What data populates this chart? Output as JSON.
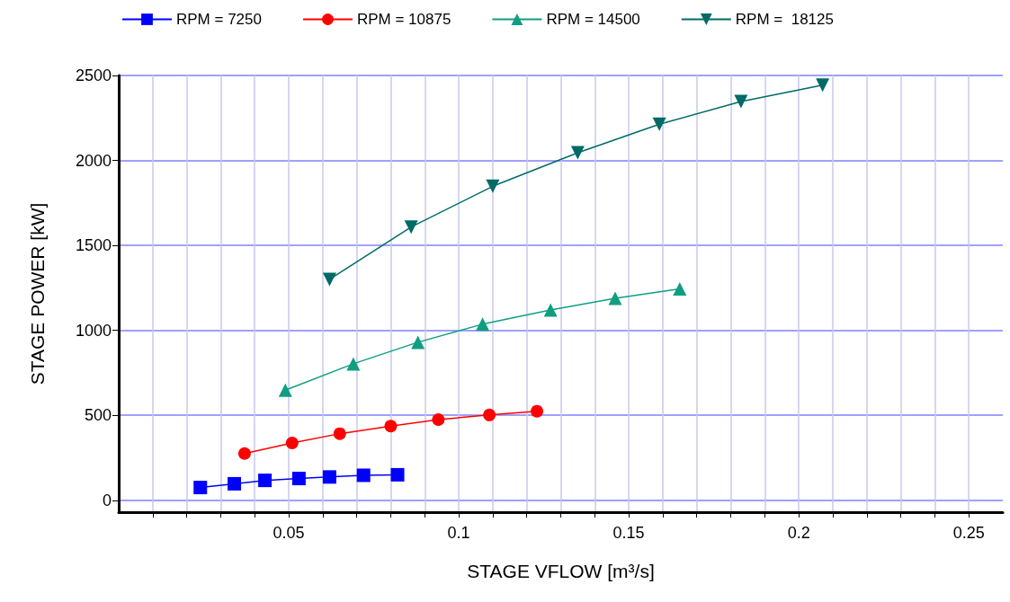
{
  "chart_data": {
    "type": "line",
    "xlabel": "STAGE VFLOW [m³/s]",
    "ylabel": "STAGE POWER [kW]",
    "xlim": [
      0,
      0.26
    ],
    "ylim": [
      -70,
      2500
    ],
    "xticks": [
      {
        "value": 0.01,
        "label": null
      },
      {
        "value": 0.02,
        "label": null
      },
      {
        "value": 0.03,
        "label": null
      },
      {
        "value": 0.04,
        "label": null
      },
      0.05,
      {
        "value": 0.06,
        "label": null
      },
      {
        "value": 0.07,
        "label": null
      },
      {
        "value": 0.08,
        "label": null
      },
      {
        "value": 0.09,
        "label": null
      },
      0.1,
      {
        "value": 0.11,
        "label": null
      },
      {
        "value": 0.12,
        "label": null
      },
      {
        "value": 0.13,
        "label": null
      },
      {
        "value": 0.14,
        "label": null
      },
      0.15,
      {
        "value": 0.16,
        "label": null
      },
      {
        "value": 0.17,
        "label": null
      },
      {
        "value": 0.18,
        "label": null
      },
      {
        "value": 0.19,
        "label": null
      },
      0.2,
      {
        "value": 0.21,
        "label": null
      },
      {
        "value": 0.22,
        "label": null
      },
      {
        "value": 0.23,
        "label": null
      },
      {
        "value": 0.24,
        "label": null
      },
      0.25
    ],
    "yticks": [
      0,
      500,
      1000,
      1500,
      2000,
      2500
    ],
    "grid": true,
    "legend": "top",
    "line_style": "solid",
    "series": [
      {
        "name": "RPM = 7250",
        "color": "#0000ff",
        "marker": "square",
        "x": [
          0.024,
          0.034,
          0.043,
          0.053,
          0.062,
          0.072,
          0.082
        ],
        "values": [
          75,
          97,
          117,
          128,
          137,
          147,
          150
        ]
      },
      {
        "name": "RPM = 10875",
        "color": "#ff0000",
        "marker": "circle",
        "x": [
          0.037,
          0.051,
          0.065,
          0.08,
          0.094,
          0.109,
          0.123
        ],
        "values": [
          275,
          337,
          392,
          436,
          475,
          502,
          524
        ]
      },
      {
        "name": "RPM = 14500",
        "color": "#109e80",
        "marker": "triangle",
        "x": [
          0.049,
          0.069,
          0.088,
          0.107,
          0.127,
          0.146,
          0.165
        ],
        "values": [
          648,
          803,
          930,
          1036,
          1120,
          1189,
          1244
        ]
      },
      {
        "name": "RPM =  18125",
        "color": "#006a66",
        "marker": "triangle-down",
        "x": [
          0.062,
          0.086,
          0.11,
          0.135,
          0.159,
          0.183,
          0.207
        ],
        "values": [
          1300,
          1608,
          1848,
          2045,
          2213,
          2347,
          2443
        ]
      }
    ]
  }
}
